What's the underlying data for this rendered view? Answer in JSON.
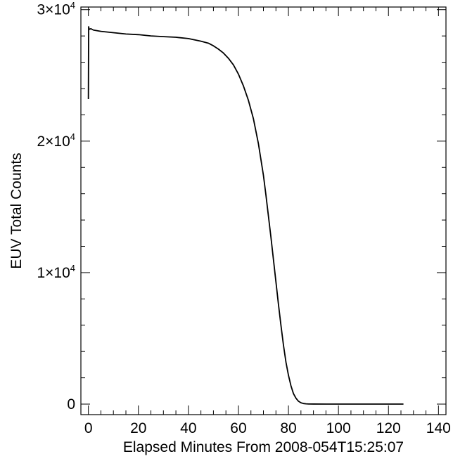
{
  "chart_data": {
    "type": "line",
    "title": "",
    "xlabel": "Elapsed Minutes From 2008-054T15:25:07",
    "ylabel": "EUV Total Counts",
    "xlim": [
      -3,
      143
    ],
    "ylim": [
      -800,
      30200
    ],
    "grid": false,
    "legend": "none",
    "x_ticks": [
      {
        "value": 0,
        "label": "0"
      },
      {
        "value": 20,
        "label": "20"
      },
      {
        "value": 40,
        "label": "40"
      },
      {
        "value": 60,
        "label": "60"
      },
      {
        "value": 80,
        "label": "80"
      },
      {
        "value": 100,
        "label": "100"
      },
      {
        "value": 120,
        "label": "120"
      },
      {
        "value": 140,
        "label": "140"
      }
    ],
    "y_ticks": [
      {
        "value": 0,
        "mantissa": "0",
        "exp": ""
      },
      {
        "value": 10000,
        "mantissa": "1×10",
        "exp": "4"
      },
      {
        "value": 20000,
        "mantissa": "2×10",
        "exp": "4"
      },
      {
        "value": 30000,
        "mantissa": "3×10",
        "exp": "4"
      }
    ],
    "x_minor_step": 5,
    "y_minor_step": 2000,
    "series": [
      {
        "color": "#000000",
        "x": [
          0,
          0.1,
          0.3,
          1,
          2,
          5,
          10,
          15,
          20,
          25,
          30,
          35,
          40,
          45,
          48,
          50,
          52,
          54,
          56,
          58,
          60,
          62,
          64,
          66,
          68,
          70,
          71,
          72,
          73,
          74,
          75,
          76,
          77,
          78,
          79,
          80,
          81,
          82,
          83,
          84,
          85,
          86,
          87,
          88,
          90,
          95,
          100,
          110,
          120,
          126
        ],
        "y": [
          23200,
          28700,
          28500,
          28550,
          28450,
          28350,
          28250,
          28150,
          28100,
          28000,
          27950,
          27900,
          27800,
          27600,
          27450,
          27250,
          27000,
          26700,
          26300,
          25800,
          25100,
          24200,
          23100,
          21700,
          19800,
          17400,
          15900,
          14300,
          12700,
          11000,
          9300,
          7600,
          6000,
          4500,
          3200,
          2200,
          1400,
          800,
          450,
          220,
          100,
          45,
          20,
          10,
          5,
          3,
          2,
          2,
          2,
          2
        ]
      }
    ]
  }
}
